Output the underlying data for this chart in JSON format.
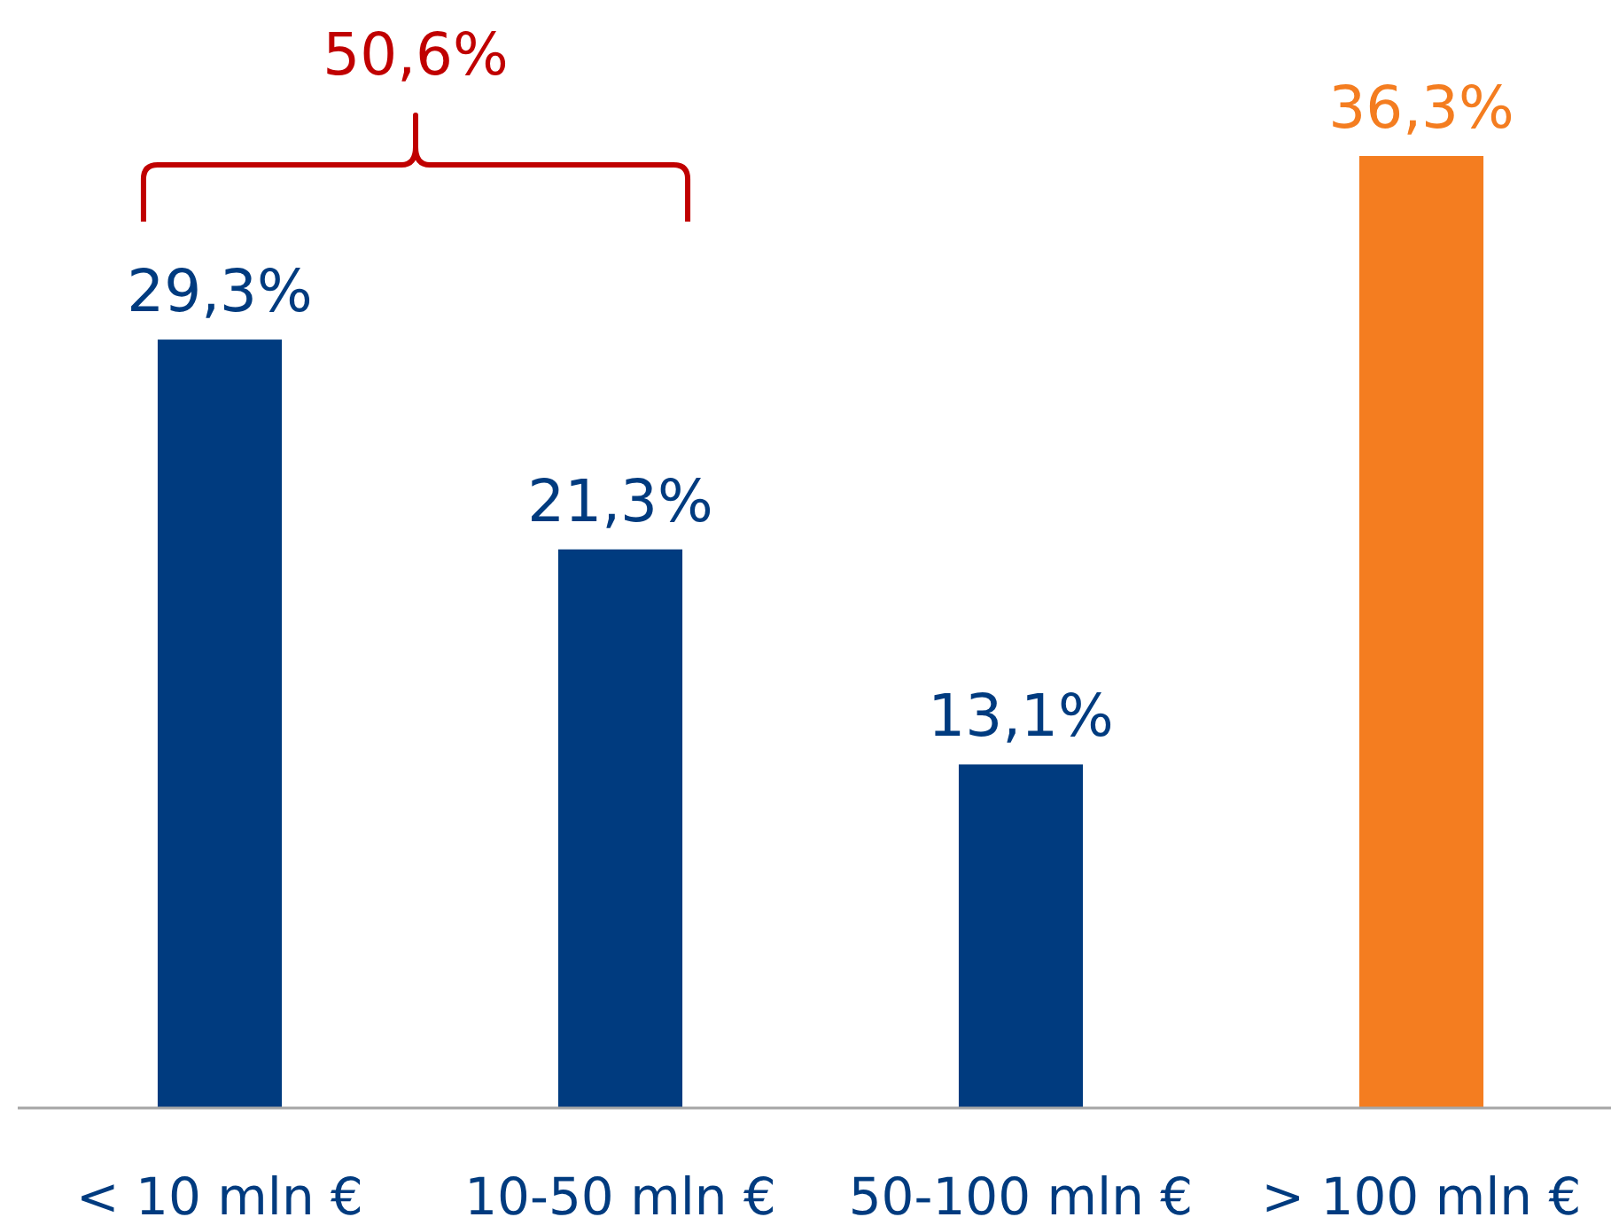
{
  "chart_data": {
    "type": "bar",
    "categories": [
      "< 10 mln €",
      "10-50 mln €",
      "50-100 mln €",
      "> 100 mln €"
    ],
    "values": [
      29.3,
      21.3,
      13.1,
      36.3
    ],
    "colors": [
      "#003b7f",
      "#003b7f",
      "#003b7f",
      "#f47d20"
    ],
    "value_labels": [
      "29,3%",
      "21,3%",
      "13,1%",
      "36,3%"
    ],
    "relative": false,
    "annotations": [
      "50,6%"
    ]
  }
}
